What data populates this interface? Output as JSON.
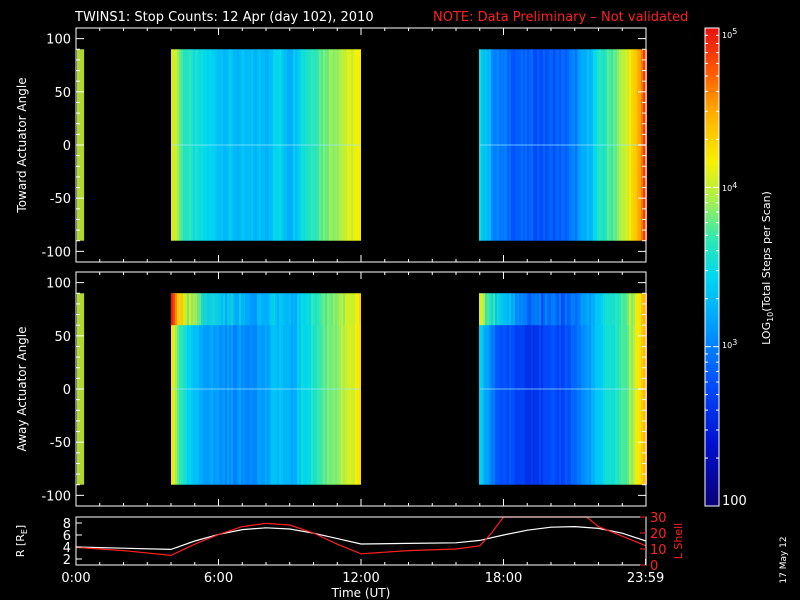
{
  "title": {
    "main": "TWINS1: Stop Counts: 12 Apr (day 102), 2010",
    "note": "NOTE: Data Preliminary – Not validated",
    "note_color": "#ff1a1a"
  },
  "date_stamp": "17 May 12",
  "chart_data": [
    {
      "type": "heatmap",
      "name": "toward",
      "ylabel": "Toward Actuator Angle",
      "ylim": [
        -110,
        110
      ],
      "yticks": [
        100,
        50,
        0,
        -50,
        -100
      ],
      "angle_range": [
        -90,
        90
      ],
      "data_blocks_hours": [
        [
          4.0,
          12.0
        ],
        [
          17.0,
          24.0
        ]
      ],
      "gap_edge_strips_hours": [
        0.0,
        0.3
      ],
      "profile_log10": [
        [
          4.0,
          4.15
        ],
        [
          4.2,
          4.0
        ],
        [
          4.4,
          3.7
        ],
        [
          5.0,
          3.5
        ],
        [
          6.0,
          3.35
        ],
        [
          7.0,
          3.25
        ],
        [
          8.0,
          3.3
        ],
        [
          8.5,
          3.45
        ],
        [
          9.0,
          3.25
        ],
        [
          9.5,
          3.55
        ],
        [
          10.0,
          3.7
        ],
        [
          10.5,
          3.85
        ],
        [
          11.0,
          3.95
        ],
        [
          11.5,
          4.05
        ],
        [
          12.0,
          4.15
        ],
        [
          17.0,
          3.45
        ],
        [
          17.3,
          3.3
        ],
        [
          17.6,
          3.0
        ],
        [
          18.5,
          2.85
        ],
        [
          19.5,
          2.8
        ],
        [
          20.5,
          2.85
        ],
        [
          21.0,
          3.0
        ],
        [
          21.5,
          3.25
        ],
        [
          22.0,
          3.55
        ],
        [
          22.5,
          3.75
        ],
        [
          23.0,
          3.95
        ],
        [
          23.5,
          4.3
        ],
        [
          24.0,
          4.9
        ]
      ]
    },
    {
      "type": "heatmap",
      "name": "away",
      "ylabel": "Away Actuator Angle",
      "ylim": [
        -110,
        110
      ],
      "yticks": [
        100,
        50,
        0,
        -50,
        -100
      ],
      "angle_range": [
        -90,
        90
      ],
      "data_blocks_hours": [
        [
          4.0,
          12.0
        ],
        [
          17.0,
          24.0
        ]
      ],
      "gap_edge_strips_hours": [
        0.0,
        0.3
      ],
      "hot_band_angle_range": [
        60,
        90
      ],
      "profile_log10": [
        [
          4.0,
          4.2
        ],
        [
          4.2,
          3.9
        ],
        [
          4.5,
          3.5
        ],
        [
          5.0,
          3.25
        ],
        [
          6.0,
          3.1
        ],
        [
          7.0,
          3.05
        ],
        [
          8.0,
          3.15
        ],
        [
          8.5,
          3.35
        ],
        [
          9.0,
          3.15
        ],
        [
          9.5,
          3.45
        ],
        [
          10.0,
          3.6
        ],
        [
          10.5,
          3.8
        ],
        [
          11.0,
          3.9
        ],
        [
          11.5,
          4.0
        ],
        [
          12.0,
          4.2
        ],
        [
          17.0,
          3.35
        ],
        [
          17.3,
          3.15
        ],
        [
          17.6,
          2.85
        ],
        [
          18.5,
          2.7
        ],
        [
          19.5,
          2.65
        ],
        [
          20.5,
          2.75
        ],
        [
          21.0,
          2.9
        ],
        [
          21.5,
          3.1
        ],
        [
          22.0,
          3.35
        ],
        [
          22.5,
          3.55
        ],
        [
          23.0,
          3.7
        ],
        [
          23.5,
          4.0
        ],
        [
          24.0,
          4.6
        ]
      ]
    },
    {
      "type": "line",
      "name": "orbit",
      "xlabel": "Time (UT)",
      "xlim_hours": [
        0,
        24
      ],
      "xtick_hours": [
        0,
        6,
        12,
        18,
        23.983
      ],
      "xtick_labels": [
        "0:00",
        "6:00",
        "12:00",
        "18:00",
        "23:59"
      ],
      "ylabel_left": "R [RE]",
      "ylim_left": [
        1,
        9
      ],
      "yticks_left": [
        2,
        4,
        6,
        8
      ],
      "ylabel_right": "L Shell",
      "ylim_right": [
        0,
        30
      ],
      "yticks_right": [
        0,
        10,
        20,
        30
      ],
      "series": [
        {
          "name": "R",
          "axis": "left",
          "color": "#ffffff",
          "x": [
            0,
            2,
            4,
            5,
            6,
            7,
            8,
            9,
            10,
            11,
            12,
            14,
            16,
            17,
            18,
            19,
            20,
            21,
            22,
            23,
            24
          ],
          "y": [
            4.0,
            3.8,
            3.6,
            5.0,
            6.1,
            6.9,
            7.2,
            7.0,
            6.3,
            5.4,
            4.5,
            4.6,
            4.7,
            5.1,
            6.0,
            6.8,
            7.3,
            7.4,
            7.1,
            6.3,
            5.0
          ]
        },
        {
          "name": "L Shell",
          "axis": "right",
          "color": "#ff2020",
          "x": [
            0,
            2,
            4,
            5,
            6,
            7,
            8,
            9,
            10,
            11,
            12,
            14,
            16,
            17,
            17.5,
            18,
            18.2,
            21,
            21.5,
            22,
            24
          ],
          "y": [
            11,
            9,
            6,
            13,
            19,
            24,
            26,
            25,
            20,
            13,
            7,
            9,
            10,
            12,
            20,
            30,
            30,
            30,
            30,
            24,
            12
          ]
        }
      ]
    }
  ],
  "colorbar": {
    "label": "LOG10(Total Steps per Scan)",
    "label_main": "LOG",
    "label_sub": "10",
    "label_rest": "(Total Steps per Scan)",
    "range_log10": [
      2,
      5
    ],
    "tick_top_base": "10",
    "tick_top_exp": "5",
    "tick_mid_base": "10",
    "tick_mid_exp": "4",
    "tick_low_base": "10",
    "tick_low_exp": "3",
    "tick_bottom": "100",
    "orbit_left_label_main": "R [R",
    "orbit_left_label_sub": "E",
    "orbit_left_label_end": "]"
  }
}
